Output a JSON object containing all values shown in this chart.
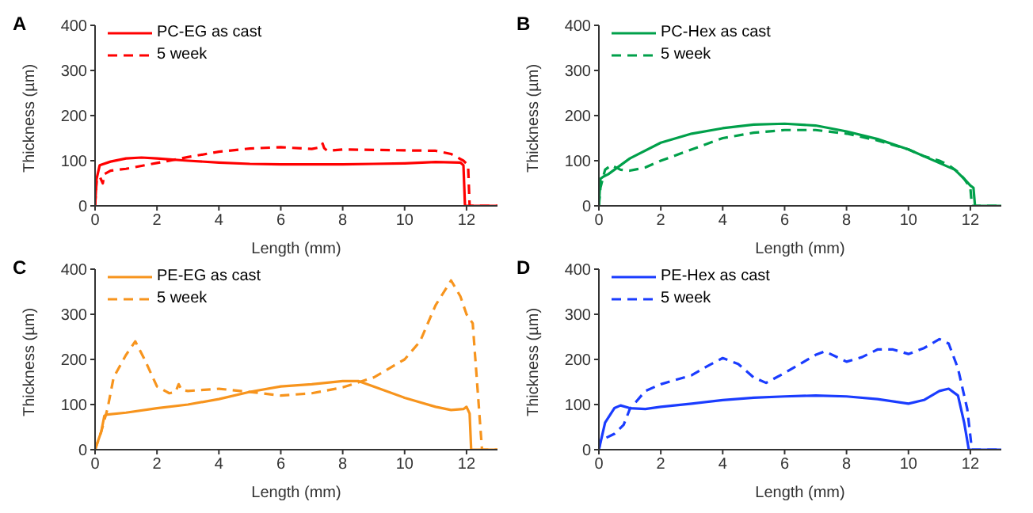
{
  "chart_data": [
    {
      "type": "line",
      "title": "A",
      "xlabel": "Length (mm)",
      "ylabel": "Thickness (µm)",
      "xlim": [
        0,
        13
      ],
      "xticks": [
        0,
        2,
        4,
        6,
        8,
        10,
        12
      ],
      "ylim": [
        0,
        400
      ],
      "yticks": [
        0,
        100,
        200,
        300,
        400
      ],
      "legend": "top left",
      "marker": "none",
      "series": [
        {
          "name": "PC-EG as cast",
          "color": "#ff0000",
          "line_style": "solid",
          "x": [
            0,
            0.05,
            0.15,
            0.5,
            1,
            1.5,
            2,
            3,
            4,
            5,
            6,
            7,
            8,
            9,
            10,
            11,
            11.8,
            11.9,
            11.95,
            13
          ],
          "values": [
            0,
            60,
            90,
            98,
            105,
            107,
            105,
            100,
            96,
            93,
            92,
            92,
            92,
            93,
            94,
            97,
            96,
            90,
            0,
            0
          ]
        },
        {
          "name": "5 week",
          "color": "#ff0000",
          "line_style": "dashed",
          "x": [
            0,
            0.05,
            0.15,
            0.25,
            0.3,
            0.5,
            1,
            2,
            3,
            4,
            5,
            6,
            7,
            7.3,
            7.35,
            7.4,
            7.5,
            8,
            9,
            10,
            11,
            11.5,
            11.9,
            12.05,
            12.1,
            13
          ],
          "values": [
            0,
            55,
            65,
            50,
            70,
            78,
            82,
            95,
            108,
            120,
            127,
            130,
            126,
            130,
            138,
            128,
            122,
            125,
            124,
            123,
            122,
            115,
            100,
            90,
            0,
            0
          ]
        }
      ]
    },
    {
      "type": "line",
      "title": "B",
      "xlabel": "Length (mm)",
      "ylabel": "Thickness (µm)",
      "xlim": [
        0,
        13
      ],
      "xticks": [
        0,
        2,
        4,
        6,
        8,
        10,
        12
      ],
      "ylim": [
        0,
        400
      ],
      "yticks": [
        0,
        100,
        200,
        300,
        400
      ],
      "legend": "top left",
      "marker": "none",
      "series": [
        {
          "name": "PC-Hex as cast",
          "color": "#00a04a",
          "line_style": "solid",
          "x": [
            0,
            0.05,
            0.15,
            0.3,
            1,
            2,
            3,
            4,
            5,
            6,
            7,
            8,
            9,
            10,
            11,
            11.5,
            11.8,
            12,
            12.1,
            12.15,
            13
          ],
          "values": [
            0,
            60,
            65,
            70,
            105,
            140,
            160,
            172,
            180,
            182,
            178,
            165,
            148,
            125,
            95,
            80,
            60,
            45,
            40,
            0,
            0
          ]
        },
        {
          "name": "5 week",
          "color": "#00a04a",
          "line_style": "dashed",
          "x": [
            0,
            0.05,
            0.2,
            0.4,
            0.7,
            1,
            1.5,
            2,
            3,
            4,
            5,
            6,
            7,
            8,
            9,
            10,
            10.5,
            11,
            11.3,
            11.6,
            11.8,
            12,
            12.05,
            13
          ],
          "values": [
            0,
            40,
            80,
            90,
            80,
            78,
            85,
            100,
            125,
            150,
            162,
            168,
            168,
            160,
            145,
            125,
            110,
            100,
            90,
            75,
            60,
            40,
            0,
            0
          ]
        }
      ]
    },
    {
      "type": "line",
      "title": "C",
      "xlabel": "Length (mm)",
      "ylabel": "Thickness (µm)",
      "xlim": [
        0,
        13
      ],
      "xticks": [
        0,
        2,
        4,
        6,
        8,
        10,
        12
      ],
      "ylim": [
        0,
        400
      ],
      "yticks": [
        0,
        100,
        200,
        300,
        400
      ],
      "legend": "top left",
      "marker": "none",
      "series": [
        {
          "name": "PE-EG as cast",
          "color": "#f7941d",
          "line_style": "solid",
          "x": [
            0,
            0.1,
            0.2,
            0.3,
            0.4,
            1,
            2,
            3,
            4,
            5,
            6,
            7,
            8,
            8.5,
            9,
            10,
            11,
            11.5,
            11.9,
            12,
            12.1,
            12.15,
            13
          ],
          "values": [
            0,
            20,
            40,
            75,
            78,
            82,
            92,
            100,
            112,
            128,
            140,
            145,
            152,
            152,
            140,
            115,
            95,
            88,
            90,
            95,
            80,
            0,
            0
          ]
        },
        {
          "name": "5 week",
          "color": "#f7941d",
          "line_style": "dashed",
          "x": [
            0,
            0.2,
            0.4,
            0.6,
            1,
            1.3,
            1.6,
            2,
            2.4,
            2.6,
            2.7,
            2.8,
            3,
            4,
            5,
            6,
            7,
            8,
            9,
            10,
            10.5,
            11,
            11.5,
            11.8,
            12,
            12.2,
            12.5,
            13
          ],
          "values": [
            0,
            40,
            90,
            160,
            210,
            240,
            200,
            140,
            125,
            128,
            145,
            132,
            130,
            135,
            128,
            120,
            125,
            138,
            160,
            200,
            240,
            320,
            375,
            340,
            300,
            280,
            0,
            0
          ]
        }
      ]
    },
    {
      "type": "line",
      "title": "D",
      "xlabel": "Length (mm)",
      "ylabel": "Thickness (µm)",
      "xlim": [
        0,
        13
      ],
      "xticks": [
        0,
        2,
        4,
        6,
        8,
        10,
        12
      ],
      "ylim": [
        0,
        400
      ],
      "yticks": [
        0,
        100,
        200,
        300,
        400
      ],
      "legend": "top left",
      "marker": "none",
      "series": [
        {
          "name": "PE-Hex as cast",
          "color": "#1a3cff",
          "line_style": "solid",
          "x": [
            0,
            0.2,
            0.5,
            0.7,
            1,
            1.5,
            2,
            3,
            4,
            5,
            6,
            7,
            8,
            9,
            10,
            10.5,
            11,
            11.3,
            11.6,
            11.8,
            11.95,
            13
          ],
          "values": [
            0,
            60,
            92,
            98,
            92,
            90,
            95,
            102,
            110,
            115,
            118,
            120,
            118,
            112,
            102,
            110,
            130,
            135,
            120,
            60,
            0,
            0
          ]
        },
        {
          "name": "5 week",
          "color": "#1a3cff",
          "line_style": "dashed",
          "x": [
            0,
            0.05,
            0.5,
            0.8,
            1,
            1.5,
            2,
            3,
            3.5,
            4,
            4.5,
            5,
            5.4,
            6,
            7,
            7.3,
            8,
            8.5,
            9,
            9.5,
            10,
            10.5,
            11,
            11.3,
            11.6,
            11.9,
            12.05,
            13
          ],
          "values": [
            0,
            20,
            35,
            55,
            90,
            130,
            145,
            165,
            185,
            203,
            190,
            160,
            148,
            170,
            210,
            218,
            195,
            205,
            222,
            222,
            212,
            225,
            245,
            235,
            180,
            90,
            0,
            0
          ]
        }
      ]
    }
  ]
}
